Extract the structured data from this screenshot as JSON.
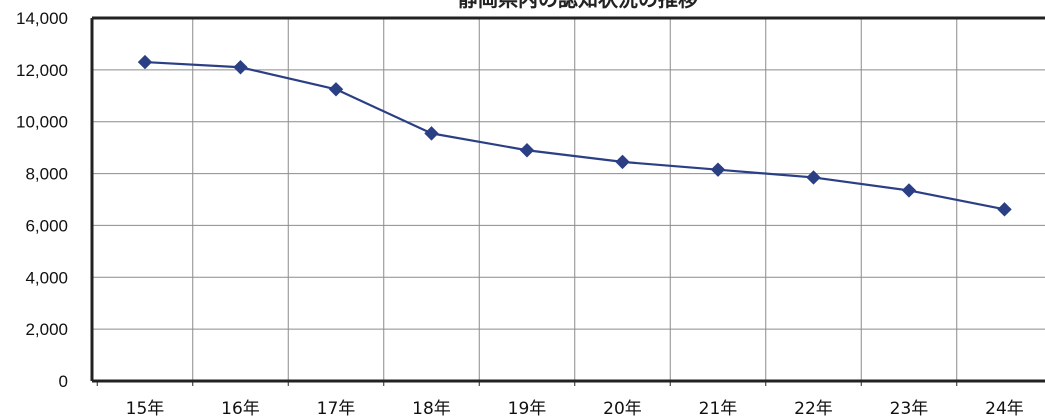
{
  "chart_data": {
    "type": "line",
    "title": "静岡県内の認知状況の推移",
    "categories": [
      "15年",
      "16年",
      "17年",
      "18年",
      "19年",
      "20年",
      "21年",
      "22年",
      "23年",
      "24年"
    ],
    "series": [
      {
        "values": [
          12300,
          12100,
          11250,
          9550,
          8900,
          8450,
          8150,
          7850,
          7350,
          6620
        ],
        "color": "#2b3f85",
        "marker": "diamond"
      }
    ],
    "y_ticks": [
      "0",
      "2,000",
      "4,000",
      "6,000",
      "8,000",
      "10,000",
      "12,000",
      "14,000"
    ],
    "ylim": [
      0,
      14000
    ],
    "xlabel": "",
    "ylabel": "",
    "grid": true,
    "colors": {
      "line": "#2b3f85",
      "grid": "#8c8c8c",
      "axis": "#222222"
    }
  }
}
